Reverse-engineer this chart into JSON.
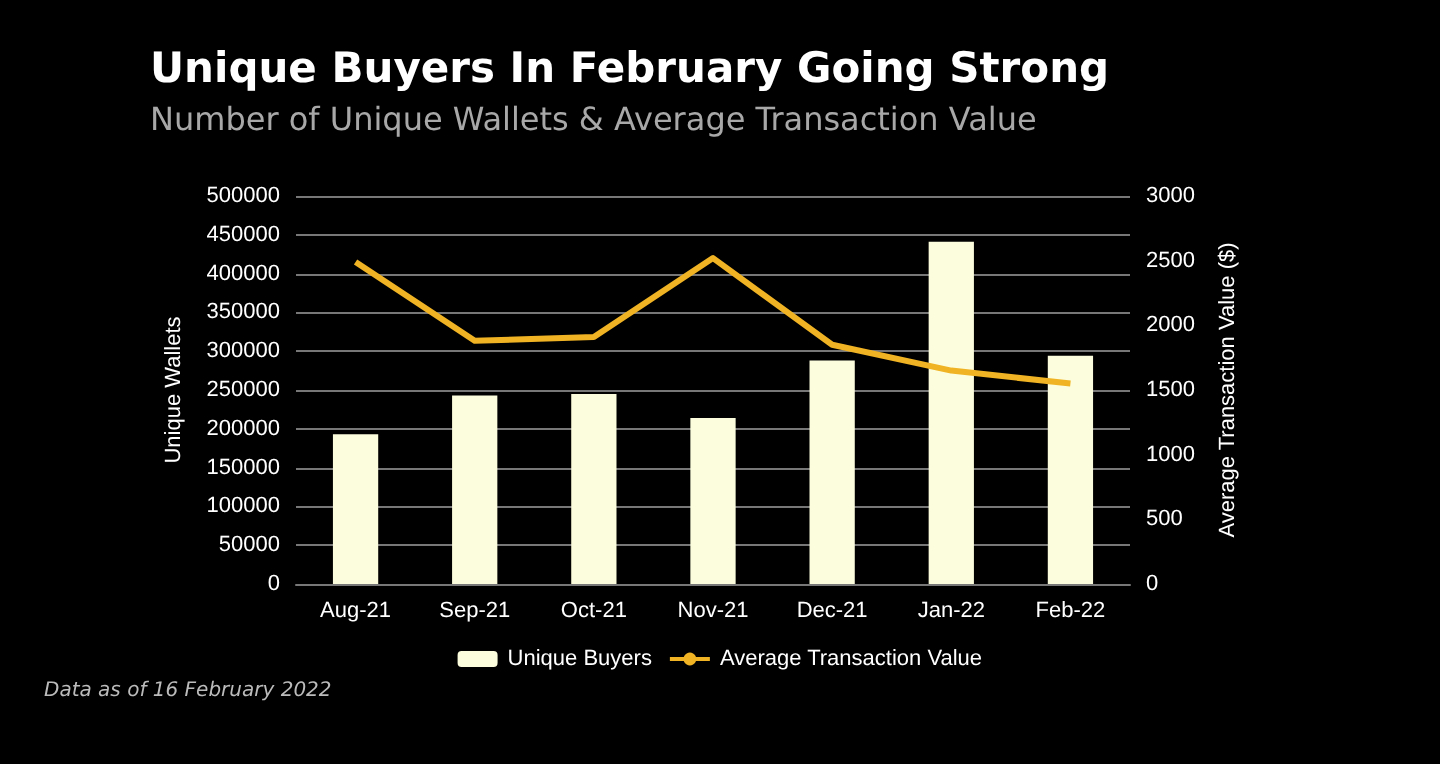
{
  "chart_data": {
    "type": "bar",
    "title": "Unique Buyers In February Going Strong",
    "subtitle": "Number of Unique Wallets & Average Transaction Value",
    "ylabel": "Unique Wallets",
    "y2label": "Average Transaction Value ($)",
    "categories": [
      "Aug-21",
      "Sep-21",
      "Oct-21",
      "Nov-21",
      "Dec-21",
      "Jan-22",
      "Feb-22"
    ],
    "series": [
      {
        "name": "Unique Buyers",
        "color": "#fcfddc",
        "values": [
          193000,
          243000,
          245000,
          214000,
          288000,
          441000,
          294000
        ]
      },
      {
        "name": "Average Transaction Value",
        "type": "line",
        "axis": "y2",
        "color": "#f0b323",
        "values": [
          2490,
          1880,
          1910,
          2520,
          1850,
          1650,
          1550
        ]
      }
    ],
    "ylim": [
      0,
      500000
    ],
    "yticks": [
      0,
      50000,
      100000,
      150000,
      200000,
      250000,
      300000,
      350000,
      400000,
      450000,
      500000
    ],
    "y2lim": [
      0,
      3000
    ],
    "y2ticks": [
      0,
      500,
      1000,
      1500,
      2000,
      2500,
      3000
    ],
    "grid": "y",
    "legend": "bottom",
    "marker": "none",
    "line_style": "solid",
    "annotations": [
      "Data as of 16 February 2022"
    ]
  }
}
